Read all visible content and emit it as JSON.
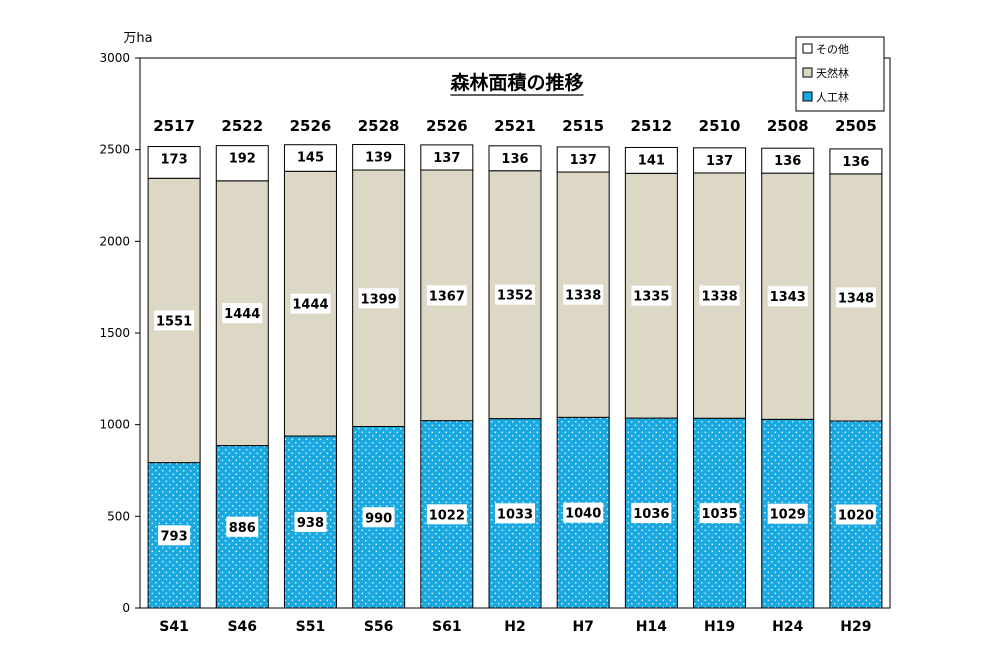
{
  "chart_data": {
    "type": "bar",
    "stacked": true,
    "title": "森林面積の推移",
    "ylabel": "万ha",
    "ylim": [
      0,
      3000
    ],
    "yticks": [
      0,
      500,
      1000,
      1500,
      2000,
      2500,
      3000
    ],
    "grid": false,
    "legend_position": "top-right",
    "categories": [
      "S41",
      "S46",
      "S51",
      "S56",
      "S61",
      "H2",
      "H7",
      "H14",
      "H19",
      "H24",
      "H29"
    ],
    "totals": [
      2517,
      2522,
      2526,
      2528,
      2526,
      2521,
      2515,
      2512,
      2510,
      2508,
      2505
    ],
    "series": [
      {
        "name": "人工林",
        "color": "#1aa8e0",
        "values": [
          793,
          886,
          938,
          990,
          1022,
          1033,
          1040,
          1036,
          1035,
          1029,
          1020
        ]
      },
      {
        "name": "天然林",
        "color": "#ddd8c6",
        "values": [
          1551,
          1444,
          1444,
          1399,
          1367,
          1352,
          1338,
          1335,
          1338,
          1343,
          1348
        ]
      },
      {
        "name": "その他",
        "color": "#ffffff",
        "values": [
          173,
          192,
          145,
          139,
          137,
          136,
          137,
          141,
          137,
          136,
          136
        ]
      }
    ],
    "legend_order": [
      "その他",
      "天然林",
      "人工林"
    ]
  }
}
